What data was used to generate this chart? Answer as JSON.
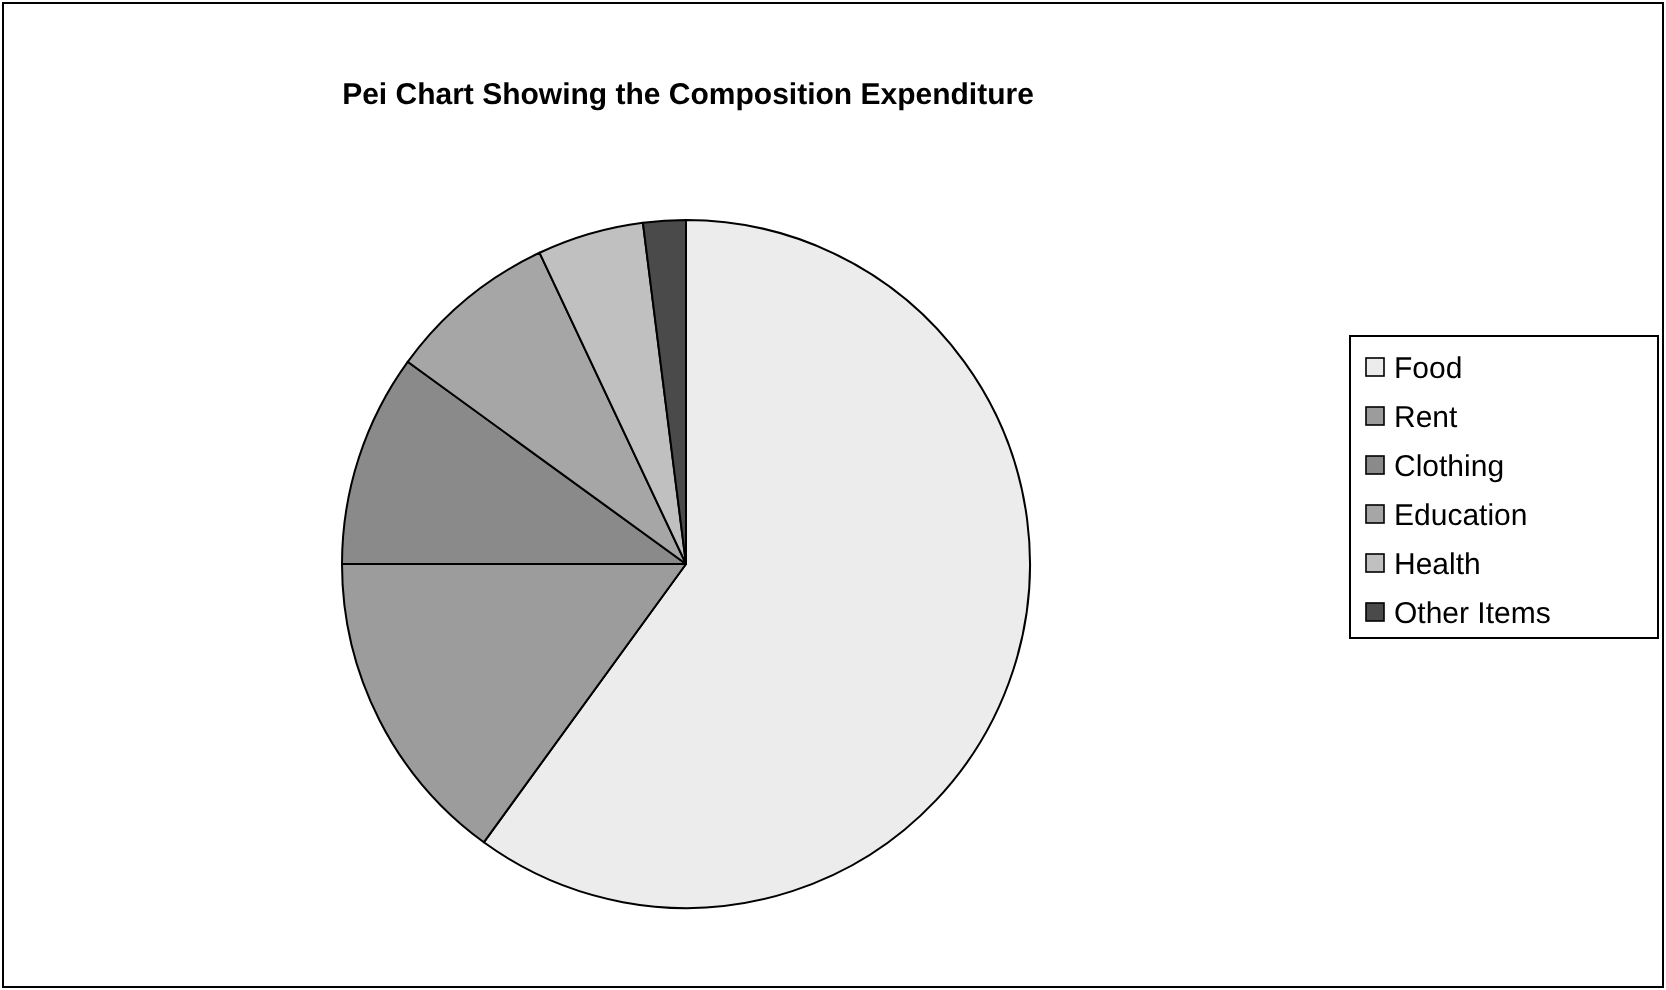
{
  "chart_data": {
    "type": "pie",
    "title": "Pei Chart Showing the Composition Expenditure",
    "categories": [
      "Food",
      "Rent",
      "Clothing",
      "Education",
      "Health",
      "Other Items"
    ],
    "values": [
      60,
      15,
      10,
      8,
      5,
      2
    ],
    "colors": [
      "#ececec",
      "#9c9c9c",
      "#8a8a8a",
      "#a6a6a6",
      "#c0c0c0",
      "#4a4a4a"
    ],
    "legend": "right"
  }
}
